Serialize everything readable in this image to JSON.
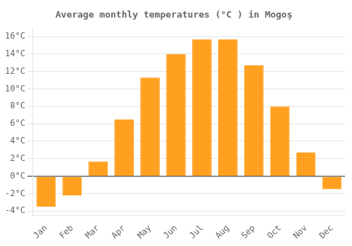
{
  "chart_data": {
    "type": "bar",
    "title": "Average monthly temperatures (°C ) in Mogoş",
    "categories": [
      "Jan",
      "Feb",
      "Mar",
      "Apr",
      "May",
      "Jun",
      "Jul",
      "Aug",
      "Sep",
      "Oct",
      "Nov",
      "Dec"
    ],
    "values": [
      -3.5,
      -2.2,
      1.7,
      6.5,
      11.3,
      14.0,
      15.7,
      15.7,
      12.7,
      8.0,
      2.7,
      -1.5
    ],
    "color": "#FFA020",
    "ylim": [
      -4.5,
      17.0
    ],
    "yticks": [
      {
        "value": -4,
        "label": "-4°C"
      },
      {
        "value": -2,
        "label": "-2°C"
      },
      {
        "value": 0,
        "label": "0°C"
      },
      {
        "value": 2,
        "label": "2°C"
      },
      {
        "value": 4,
        "label": "4°C"
      },
      {
        "value": 6,
        "label": "6°C"
      },
      {
        "value": 8,
        "label": "8°C"
      },
      {
        "value": 10,
        "label": "10°C"
      },
      {
        "value": 12,
        "label": "12°C"
      },
      {
        "value": 14,
        "label": "14°C"
      },
      {
        "value": 16,
        "label": "16°C"
      }
    ],
    "grid": true
  }
}
